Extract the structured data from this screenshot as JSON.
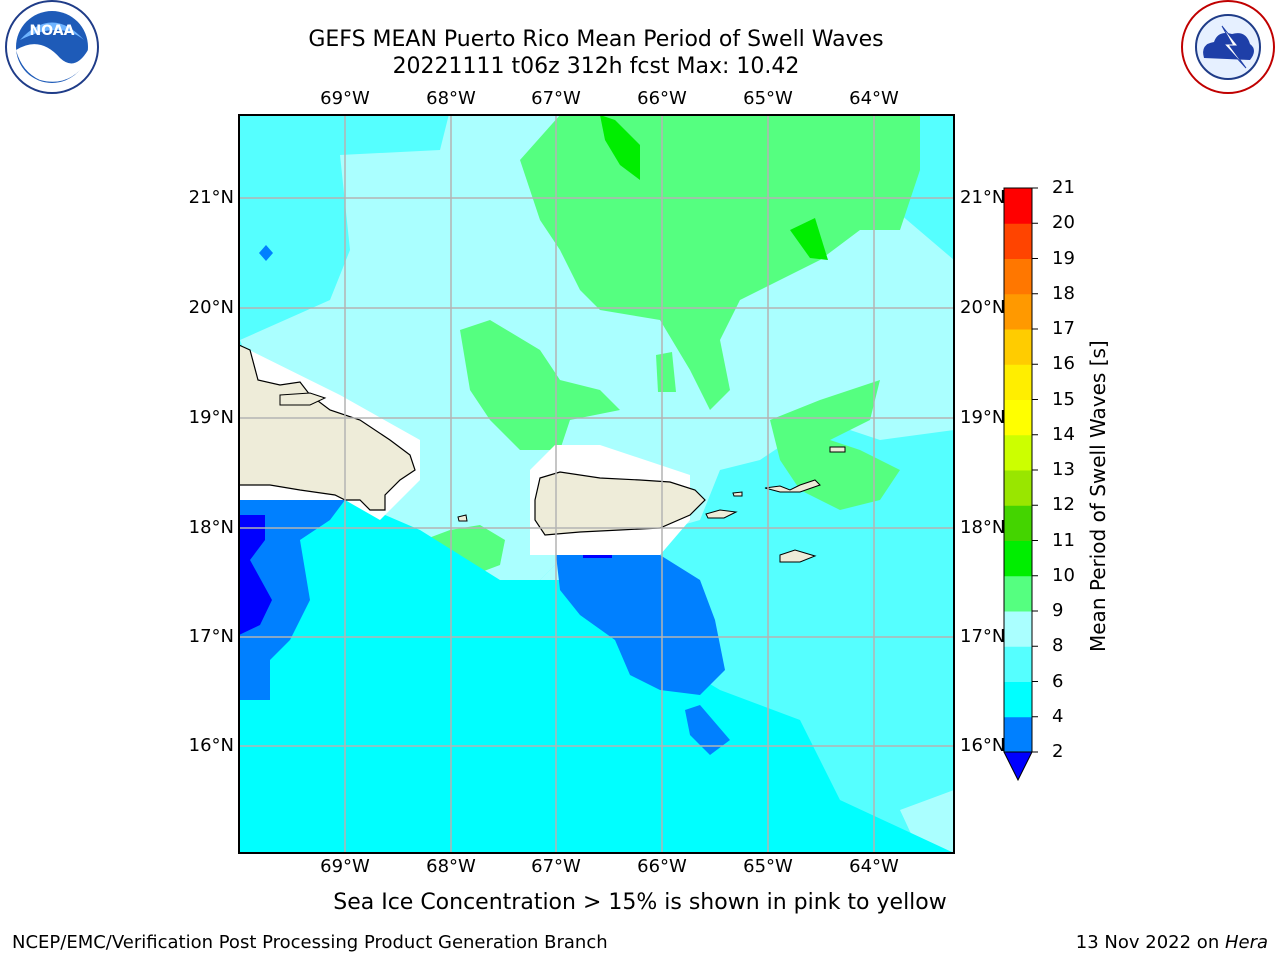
{
  "header": {
    "title_line1": "GEFS MEAN Puerto Rico Mean Period of Swell Waves",
    "title_line2": "20221111 t06z 312h fcst    Max: 10.42"
  },
  "logos": {
    "left": "NOAA",
    "right": "NATIONAL WEATHER SERVICE",
    "left_icon": "noaa-logo-icon",
    "right_icon": "nws-logo-icon"
  },
  "map": {
    "lon_labels": [
      "69°W",
      "68°W",
      "67°W",
      "66°W",
      "65°W",
      "64°W"
    ],
    "lat_labels": [
      "21°N",
      "20°N",
      "19°N",
      "18°N",
      "17°N",
      "16°N"
    ],
    "land_color": "#eeecd9",
    "grid_color": "#b4b4b4"
  },
  "colorbar": {
    "label": "Mean Period of Swell Waves [s]",
    "ticks": [
      "2",
      "4",
      "6",
      "8",
      "9",
      "10",
      "11",
      "12",
      "13",
      "14",
      "15",
      "16",
      "17",
      "18",
      "19",
      "20",
      "21"
    ],
    "colors": [
      "#0000ff",
      "#0080ff",
      "#00ffff",
      "#55ffff",
      "#aaffff",
      "#55ff80",
      "#00ee00",
      "#44d400",
      "#99e600",
      "#ccff00",
      "#ffff00",
      "#ffee00",
      "#ffcc00",
      "#ff9900",
      "#ff7700",
      "#ff4400",
      "#ff0000"
    ],
    "under_color": "#0000ff"
  },
  "note": "Sea Ice Concentration > 15% is shown in pink to yellow",
  "footer": {
    "left": "NCEP/EMC/Verification Post Processing Product Generation Branch",
    "right_date": "13 Nov 2022 on ",
    "right_host": "Hera"
  }
}
